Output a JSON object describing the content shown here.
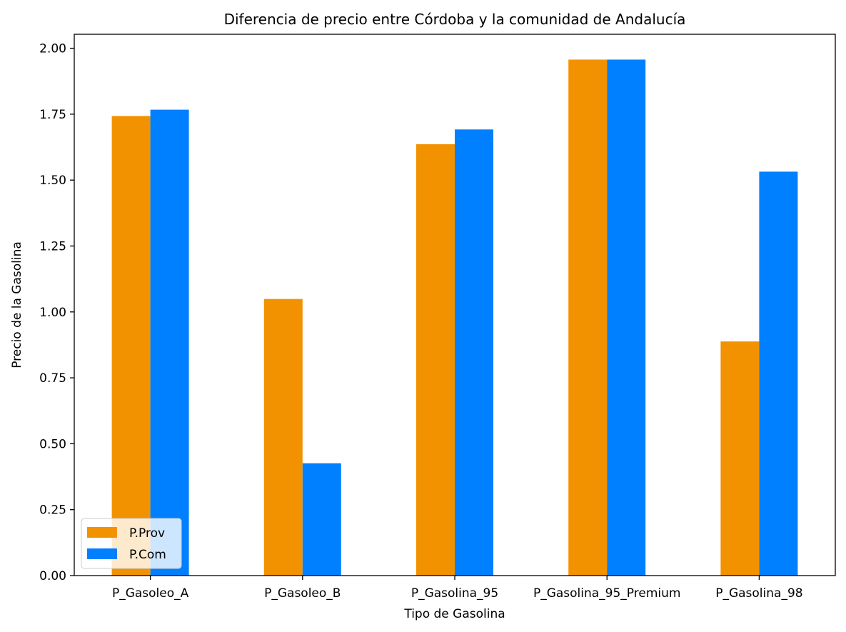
{
  "chart_data": {
    "type": "bar",
    "title": "Diferencia de precio entre Córdoba y la comunidad de Andalucía",
    "xlabel": "Tipo de Gasolina",
    "ylabel": "Precio de la Gasolina",
    "categories": [
      "P_Gasoleo_A",
      "P_Gasoleo_B",
      "P_Gasolina_95",
      "P_Gasolina_95_Premium",
      "P_Gasolina_98"
    ],
    "series": [
      {
        "name": "P.Prov",
        "color": "#f39200",
        "values": [
          1.743,
          1.049,
          1.636,
          1.957,
          0.888
        ]
      },
      {
        "name": "P.Com",
        "color": "#0080ff",
        "values": [
          1.767,
          0.426,
          1.692,
          1.957,
          1.532
        ]
      }
    ],
    "ylim": [
      0,
      2.053
    ],
    "yticks": [
      "0.00",
      "0.25",
      "0.50",
      "0.75",
      "1.00",
      "1.25",
      "1.50",
      "1.75",
      "2.00"
    ],
    "grid": false,
    "legend_position": "lower-left"
  }
}
